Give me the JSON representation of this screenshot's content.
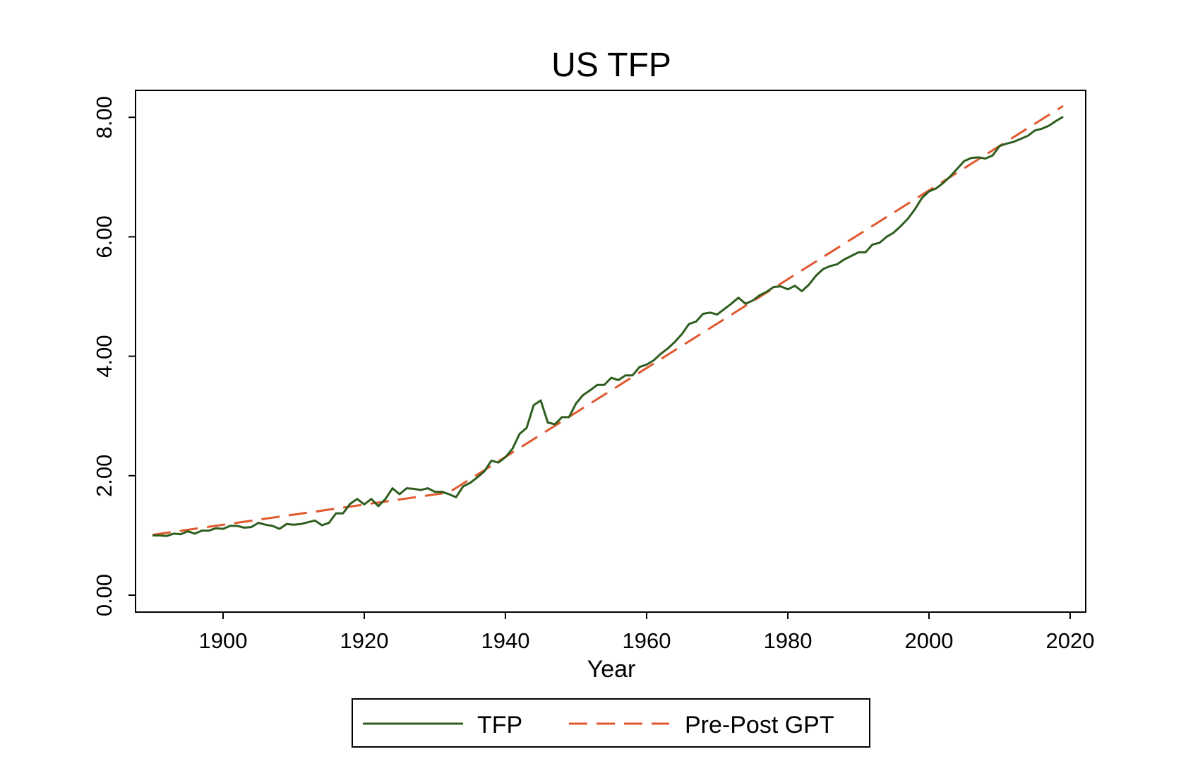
{
  "colors": {
    "tfp": "#2e5e1e",
    "gpt": "#e0582e",
    "axis": "#000000",
    "background": "#ffffff"
  },
  "chart_data": {
    "type": "line",
    "title": "US TFP",
    "xlabel": "Year",
    "ylabel": "",
    "xlim": [
      1890,
      2019
    ],
    "ylim": [
      0,
      8
    ],
    "xticks": [
      1900,
      1920,
      1940,
      1960,
      1980,
      2000,
      2020
    ],
    "xtick_labels": [
      "1900",
      "1920",
      "1940",
      "1960",
      "1980",
      "2000",
      "2020"
    ],
    "yticks": [
      0,
      2,
      4,
      6,
      8
    ],
    "ytick_labels": [
      "0.00",
      "2.00",
      "4.00",
      "6.00",
      "8.00"
    ],
    "grid": false,
    "legend_position": "bottom",
    "series": [
      {
        "name": "TFP",
        "style": "solid",
        "color": "#2e5e1e",
        "x": [
          1890,
          1891,
          1892,
          1893,
          1894,
          1895,
          1896,
          1897,
          1898,
          1899,
          1900,
          1901,
          1902,
          1903,
          1904,
          1905,
          1906,
          1907,
          1908,
          1909,
          1910,
          1911,
          1912,
          1913,
          1914,
          1915,
          1916,
          1917,
          1918,
          1919,
          1920,
          1921,
          1922,
          1923,
          1924,
          1925,
          1926,
          1927,
          1928,
          1929,
          1930,
          1931,
          1932,
          1933,
          1934,
          1935,
          1936,
          1937,
          1938,
          1939,
          1940,
          1941,
          1942,
          1943,
          1944,
          1945,
          1946,
          1947,
          1948,
          1949,
          1950,
          1951,
          1952,
          1953,
          1954,
          1955,
          1956,
          1957,
          1958,
          1959,
          1960,
          1961,
          1962,
          1963,
          1964,
          1965,
          1966,
          1967,
          1968,
          1969,
          1970,
          1971,
          1972,
          1973,
          1974,
          1975,
          1976,
          1977,
          1978,
          1979,
          1980,
          1981,
          1982,
          1983,
          1984,
          1985,
          1986,
          1987,
          1988,
          1989,
          1990,
          1991,
          1992,
          1993,
          1994,
          1995,
          1996,
          1997,
          1998,
          1999,
          2000,
          2001,
          2002,
          2003,
          2004,
          2005,
          2006,
          2007,
          2008,
          2009,
          2010,
          2011,
          2012,
          2013,
          2014,
          2015,
          2016,
          2017,
          2018,
          2019
        ],
        "y": [
          1.0,
          1.0,
          0.99,
          1.03,
          1.02,
          1.07,
          1.03,
          1.08,
          1.08,
          1.12,
          1.11,
          1.16,
          1.16,
          1.13,
          1.14,
          1.21,
          1.18,
          1.16,
          1.11,
          1.19,
          1.18,
          1.19,
          1.22,
          1.25,
          1.17,
          1.21,
          1.37,
          1.37,
          1.53,
          1.61,
          1.52,
          1.61,
          1.49,
          1.61,
          1.79,
          1.69,
          1.79,
          1.78,
          1.76,
          1.79,
          1.73,
          1.73,
          1.69,
          1.64,
          1.82,
          1.88,
          1.97,
          2.07,
          2.25,
          2.22,
          2.31,
          2.45,
          2.7,
          2.8,
          3.18,
          3.26,
          2.89,
          2.86,
          2.98,
          2.98,
          3.21,
          3.35,
          3.43,
          3.52,
          3.52,
          3.64,
          3.6,
          3.68,
          3.68,
          3.82,
          3.86,
          3.93,
          4.04,
          4.13,
          4.24,
          4.37,
          4.54,
          4.58,
          4.71,
          4.73,
          4.7,
          4.79,
          4.88,
          4.98,
          4.88,
          4.93,
          5.02,
          5.08,
          5.16,
          5.17,
          5.12,
          5.18,
          5.09,
          5.2,
          5.35,
          5.46,
          5.51,
          5.54,
          5.62,
          5.68,
          5.74,
          5.74,
          5.87,
          5.9,
          6.0,
          6.07,
          6.18,
          6.3,
          6.46,
          6.65,
          6.76,
          6.81,
          6.9,
          7.01,
          7.14,
          7.27,
          7.32,
          7.33,
          7.31,
          7.36,
          7.52,
          7.56,
          7.59,
          7.64,
          7.69,
          7.78,
          7.81,
          7.86,
          7.94,
          8.01
        ]
      },
      {
        "name": "Pre-Post GPT",
        "style": "dashed",
        "color": "#e0582e",
        "x": [
          1890,
          1932,
          2019
        ],
        "y": [
          1.01,
          1.72,
          8.19
        ]
      }
    ]
  },
  "legend": {
    "items": [
      {
        "label": "TFP",
        "style": "solid",
        "color": "#2e5e1e"
      },
      {
        "label": "Pre-Post GPT",
        "style": "dashed",
        "color": "#e0582e"
      }
    ]
  }
}
